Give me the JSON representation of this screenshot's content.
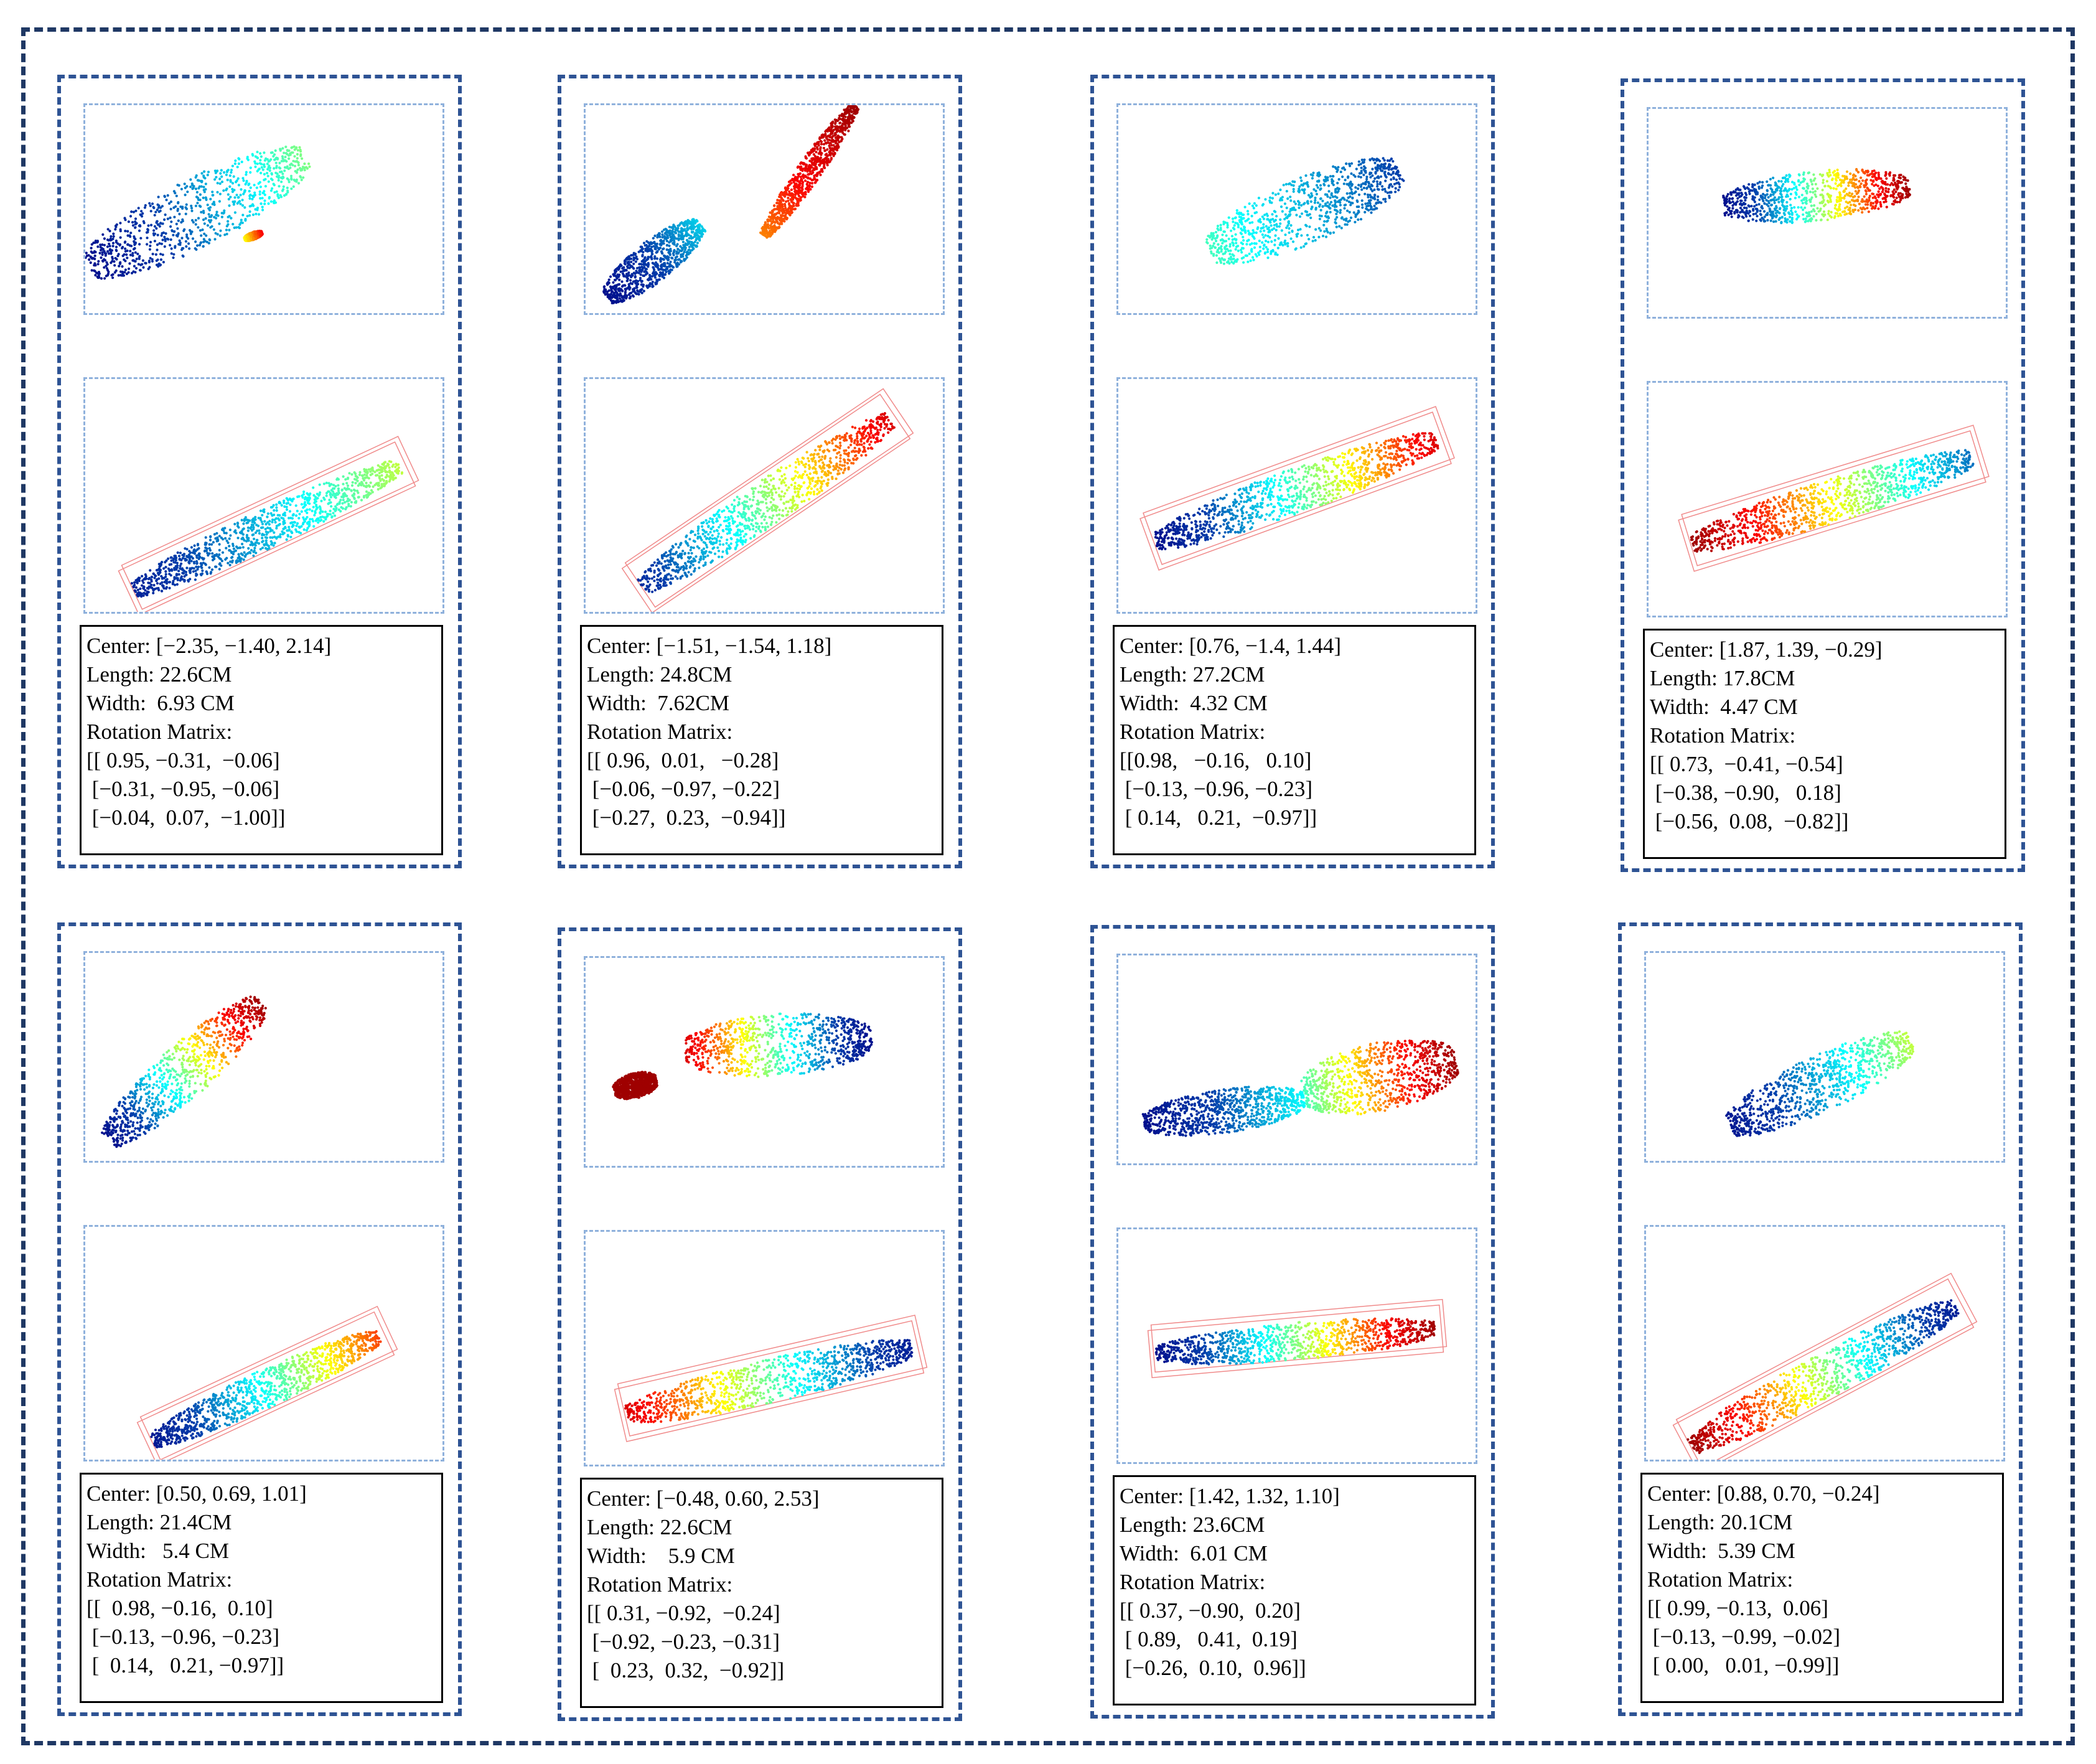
{
  "cells": [
    {
      "info": {
        "center": "Center: [−2.35, −1.40, 2.14]",
        "length": "Length: 22.6CM",
        "width": "Width:  6.93 CM",
        "rotation_label": "Rotation Matrix:",
        "rows": [
          "[[ 0.95, −0.31,  −0.06]",
          " [−0.31, −0.95, −0.06]",
          " [−0.04,  0.07,  −1.00]]"
        ]
      }
    },
    {
      "info": {
        "center": "Center: [−1.51, −1.54, 1.18]",
        "length": "Length: 24.8CM",
        "width": "Width:  7.62CM",
        "rotation_label": "Rotation Matrix:",
        "rows": [
          "[[ 0.96,  0.01,   −0.28]",
          " [−0.06, −0.97, −0.22]",
          " [−0.27,  0.23,  −0.94]]"
        ]
      }
    },
    {
      "info": {
        "center": "Center: [0.76, −1.4, 1.44]",
        "length": "Length: 27.2CM",
        "width": "Width:  4.32 CM",
        "rotation_label": "Rotation Matrix:",
        "rows": [
          "[[0.98,   −0.16,   0.10]",
          " [−0.13, −0.96, −0.23]",
          " [ 0.14,   0.21,  −0.97]]"
        ]
      }
    },
    {
      "info": {
        "center": "Center: [1.87, 1.39, −0.29]",
        "length": "Length: 17.8CM",
        "width": "Width:  4.47 CM",
        "rotation_label": "Rotation Matrix:",
        "rows": [
          "[[ 0.73,  −0.41, −0.54]",
          " [−0.38, −0.90,   0.18]",
          " [−0.56,  0.08,  −0.82]]"
        ]
      }
    },
    {
      "info": {
        "center": "Center: [0.50, 0.69, 1.01]",
        "length": "Length: 21.4CM",
        "width": "Width:   5.4 CM",
        "rotation_label": "Rotation Matrix:",
        "rows": [
          "[[  0.98, −0.16,  0.10]",
          " [−0.13, −0.96, −0.23]",
          " [  0.14,   0.21, −0.97]]"
        ]
      }
    },
    {
      "info": {
        "center": "Center: [−0.48, 0.60, 2.53]",
        "length": "Length: 22.6CM",
        "width": "Width:    5.9 CM",
        "rotation_label": "Rotation Matrix:",
        "rows": [
          "[[ 0.31, −0.92,  −0.24]",
          " [−0.92, −0.23, −0.31]",
          " [  0.23,  0.32,  −0.92]]"
        ]
      }
    },
    {
      "info": {
        "center": "Center: [1.42, 1.32, 1.10]",
        "length": "Length: 23.6CM",
        "width": "Width:  6.01 CM",
        "rotation_label": "Rotation Matrix:",
        "rows": [
          "[[ 0.37, −0.90,  0.20]",
          " [ 0.89,   0.41,  0.19]",
          " [−0.26,  0.10,  0.96]]"
        ]
      }
    },
    {
      "info": {
        "center": "Center: [0.88, 0.70, −0.24]",
        "length": "Length: 20.1CM",
        "width": "Width:  5.39 CM",
        "rotation_label": "Rotation Matrix:",
        "rows": [
          "[[ 0.99, −0.13,  0.06]",
          " [−0.13, −0.99, −0.02]",
          " [ 0.00,   0.01, −0.99]]"
        ]
      }
    }
  ]
}
